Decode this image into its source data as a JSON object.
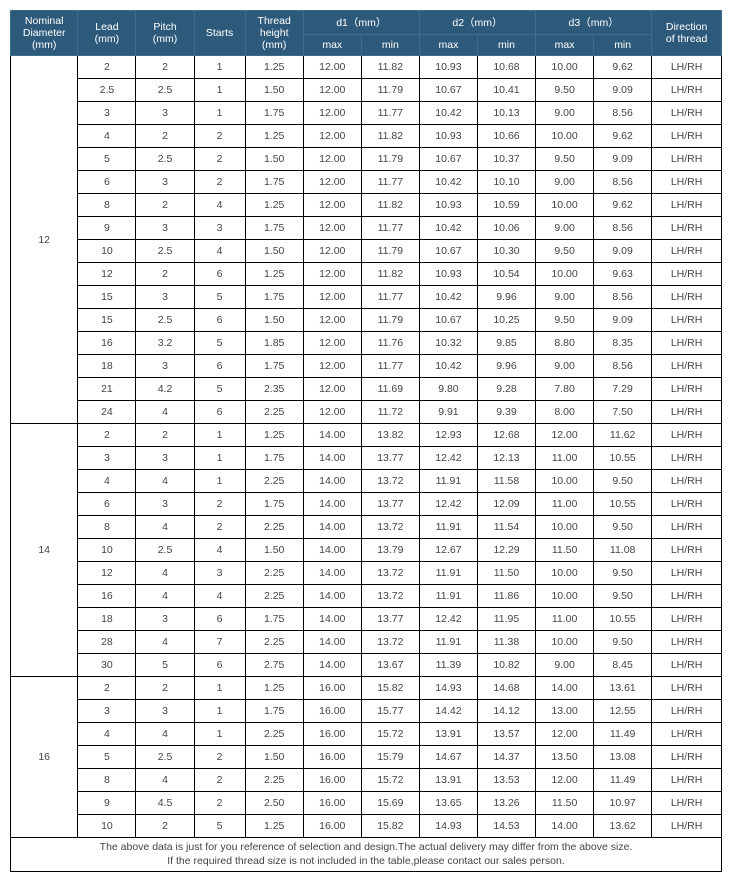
{
  "header": {
    "nominal": "Nominal\nDiameter\n(mm)",
    "lead": "Lead\n(mm)",
    "pitch": "Pitch\n(mm)",
    "starts": "Starts",
    "thread_height": "Thread\nheight\n(mm)",
    "d1": "d1（mm）",
    "d2": "d2（mm）",
    "d3": "d3（mm）",
    "max": "max",
    "min": "min",
    "direction": "Direction\nof thread"
  },
  "footer": {
    "line1": "The above data is just for you reference of selection and design.The actual delivery may differ from the above size.",
    "line2": "If the required thread size is not included in the table,please contact our sales person."
  },
  "groups": [
    {
      "nominal": "12",
      "rows": [
        {
          "lead": "2",
          "pitch": "2",
          "starts": "1",
          "th": "1.25",
          "d1max": "12.00",
          "d1min": "11.82",
          "d2max": "10.93",
          "d2min": "10.68",
          "d3max": "10.00",
          "d3min": "9.62",
          "dir": "LH/RH"
        },
        {
          "lead": "2.5",
          "pitch": "2.5",
          "starts": "1",
          "th": "1.50",
          "d1max": "12.00",
          "d1min": "11.79",
          "d2max": "10.67",
          "d2min": "10.41",
          "d3max": "9.50",
          "d3min": "9.09",
          "dir": "LH/RH"
        },
        {
          "lead": "3",
          "pitch": "3",
          "starts": "1",
          "th": "1.75",
          "d1max": "12.00",
          "d1min": "11.77",
          "d2max": "10.42",
          "d2min": "10.13",
          "d3max": "9.00",
          "d3min": "8.56",
          "dir": "LH/RH"
        },
        {
          "lead": "4",
          "pitch": "2",
          "starts": "2",
          "th": "1.25",
          "d1max": "12.00",
          "d1min": "11.82",
          "d2max": "10.93",
          "d2min": "10.66",
          "d3max": "10.00",
          "d3min": "9.62",
          "dir": "LH/RH"
        },
        {
          "lead": "5",
          "pitch": "2.5",
          "starts": "2",
          "th": "1.50",
          "d1max": "12.00",
          "d1min": "11.79",
          "d2max": "10.67",
          "d2min": "10.37",
          "d3max": "9.50",
          "d3min": "9.09",
          "dir": "LH/RH"
        },
        {
          "lead": "6",
          "pitch": "3",
          "starts": "2",
          "th": "1.75",
          "d1max": "12.00",
          "d1min": "11.77",
          "d2max": "10.42",
          "d2min": "10.10",
          "d3max": "9.00",
          "d3min": "8.56",
          "dir": "LH/RH"
        },
        {
          "lead": "8",
          "pitch": "2",
          "starts": "4",
          "th": "1.25",
          "d1max": "12.00",
          "d1min": "11.82",
          "d2max": "10.93",
          "d2min": "10.59",
          "d3max": "10.00",
          "d3min": "9.62",
          "dir": "LH/RH"
        },
        {
          "lead": "9",
          "pitch": "3",
          "starts": "3",
          "th": "1.75",
          "d1max": "12.00",
          "d1min": "11.77",
          "d2max": "10.42",
          "d2min": "10.06",
          "d3max": "9.00",
          "d3min": "8.56",
          "dir": "LH/RH"
        },
        {
          "lead": "10",
          "pitch": "2.5",
          "starts": "4",
          "th": "1.50",
          "d1max": "12.00",
          "d1min": "11.79",
          "d2max": "10.67",
          "d2min": "10.30",
          "d3max": "9.50",
          "d3min": "9.09",
          "dir": "LH/RH"
        },
        {
          "lead": "12",
          "pitch": "2",
          "starts": "6",
          "th": "1.25",
          "d1max": "12.00",
          "d1min": "11.82",
          "d2max": "10.93",
          "d2min": "10.54",
          "d3max": "10.00",
          "d3min": "9.63",
          "dir": "LH/RH"
        },
        {
          "lead": "15",
          "pitch": "3",
          "starts": "5",
          "th": "1.75",
          "d1max": "12.00",
          "d1min": "11.77",
          "d2max": "10.42",
          "d2min": "9.96",
          "d3max": "9.00",
          "d3min": "8.56",
          "dir": "LH/RH"
        },
        {
          "lead": "15",
          "pitch": "2.5",
          "starts": "6",
          "th": "1.50",
          "d1max": "12.00",
          "d1min": "11.79",
          "d2max": "10.67",
          "d2min": "10.25",
          "d3max": "9.50",
          "d3min": "9.09",
          "dir": "LH/RH"
        },
        {
          "lead": "16",
          "pitch": "3.2",
          "starts": "5",
          "th": "1.85",
          "d1max": "12.00",
          "d1min": "11.76",
          "d2max": "10.32",
          "d2min": "9.85",
          "d3max": "8.80",
          "d3min": "8.35",
          "dir": "LH/RH"
        },
        {
          "lead": "18",
          "pitch": "3",
          "starts": "6",
          "th": "1.75",
          "d1max": "12.00",
          "d1min": "11.77",
          "d2max": "10.42",
          "d2min": "9.96",
          "d3max": "9.00",
          "d3min": "8.56",
          "dir": "LH/RH"
        },
        {
          "lead": "21",
          "pitch": "4.2",
          "starts": "5",
          "th": "2.35",
          "d1max": "12.00",
          "d1min": "11.69",
          "d2max": "9.80",
          "d2min": "9.28",
          "d3max": "7.80",
          "d3min": "7.29",
          "dir": "LH/RH"
        },
        {
          "lead": "24",
          "pitch": "4",
          "starts": "6",
          "th": "2.25",
          "d1max": "12.00",
          "d1min": "11.72",
          "d2max": "9.91",
          "d2min": "9.39",
          "d3max": "8.00",
          "d3min": "7.50",
          "dir": "LH/RH"
        }
      ]
    },
    {
      "nominal": "14",
      "rows": [
        {
          "lead": "2",
          "pitch": "2",
          "starts": "1",
          "th": "1.25",
          "d1max": "14.00",
          "d1min": "13.82",
          "d2max": "12.93",
          "d2min": "12.68",
          "d3max": "12.00",
          "d3min": "11.62",
          "dir": "LH/RH"
        },
        {
          "lead": "3",
          "pitch": "3",
          "starts": "1",
          "th": "1.75",
          "d1max": "14.00",
          "d1min": "13.77",
          "d2max": "12.42",
          "d2min": "12.13",
          "d3max": "11.00",
          "d3min": "10.55",
          "dir": "LH/RH"
        },
        {
          "lead": "4",
          "pitch": "4",
          "starts": "1",
          "th": "2.25",
          "d1max": "14.00",
          "d1min": "13.72",
          "d2max": "11.91",
          "d2min": "11.58",
          "d3max": "10.00",
          "d3min": "9.50",
          "dir": "LH/RH"
        },
        {
          "lead": "6",
          "pitch": "3",
          "starts": "2",
          "th": "1.75",
          "d1max": "14.00",
          "d1min": "13.77",
          "d2max": "12.42",
          "d2min": "12.09",
          "d3max": "11.00",
          "d3min": "10.55",
          "dir": "LH/RH"
        },
        {
          "lead": "8",
          "pitch": "4",
          "starts": "2",
          "th": "2.25",
          "d1max": "14.00",
          "d1min": "13.72",
          "d2max": "11.91",
          "d2min": "11.54",
          "d3max": "10.00",
          "d3min": "9.50",
          "dir": "LH/RH"
        },
        {
          "lead": "10",
          "pitch": "2.5",
          "starts": "4",
          "th": "1.50",
          "d1max": "14.00",
          "d1min": "13.79",
          "d2max": "12.67",
          "d2min": "12.29",
          "d3max": "11.50",
          "d3min": "11.08",
          "dir": "LH/RH"
        },
        {
          "lead": "12",
          "pitch": "4",
          "starts": "3",
          "th": "2.25",
          "d1max": "14.00",
          "d1min": "13.72",
          "d2max": "11.91",
          "d2min": "11.50",
          "d3max": "10.00",
          "d3min": "9.50",
          "dir": "LH/RH"
        },
        {
          "lead": "16",
          "pitch": "4",
          "starts": "4",
          "th": "2.25",
          "d1max": "14.00",
          "d1min": "13.72",
          "d2max": "11.91",
          "d2min": "11.86",
          "d3max": "10.00",
          "d3min": "9.50",
          "dir": "LH/RH"
        },
        {
          "lead": "18",
          "pitch": "3",
          "starts": "6",
          "th": "1.75",
          "d1max": "14.00",
          "d1min": "13.77",
          "d2max": "12.42",
          "d2min": "11.95",
          "d3max": "11.00",
          "d3min": "10.55",
          "dir": "LH/RH"
        },
        {
          "lead": "28",
          "pitch": "4",
          "starts": "7",
          "th": "2.25",
          "d1max": "14.00",
          "d1min": "13.72",
          "d2max": "11.91",
          "d2min": "11.38",
          "d3max": "10.00",
          "d3min": "9.50",
          "dir": "LH/RH"
        },
        {
          "lead": "30",
          "pitch": "5",
          "starts": "6",
          "th": "2.75",
          "d1max": "14.00",
          "d1min": "13.67",
          "d2max": "11.39",
          "d2min": "10.82",
          "d3max": "9.00",
          "d3min": "8.45",
          "dir": "LH/RH"
        }
      ]
    },
    {
      "nominal": "16",
      "rows": [
        {
          "lead": "2",
          "pitch": "2",
          "starts": "1",
          "th": "1.25",
          "d1max": "16.00",
          "d1min": "15.82",
          "d2max": "14.93",
          "d2min": "14.68",
          "d3max": "14.00",
          "d3min": "13.61",
          "dir": "LH/RH"
        },
        {
          "lead": "3",
          "pitch": "3",
          "starts": "1",
          "th": "1.75",
          "d1max": "16.00",
          "d1min": "15.77",
          "d2max": "14.42",
          "d2min": "14.12",
          "d3max": "13.00",
          "d3min": "12.55",
          "dir": "LH/RH"
        },
        {
          "lead": "4",
          "pitch": "4",
          "starts": "1",
          "th": "2.25",
          "d1max": "16.00",
          "d1min": "15.72",
          "d2max": "13.91",
          "d2min": "13.57",
          "d3max": "12.00",
          "d3min": "11.49",
          "dir": "LH/RH"
        },
        {
          "lead": "5",
          "pitch": "2.5",
          "starts": "2",
          "th": "1.50",
          "d1max": "16.00",
          "d1min": "15.79",
          "d2max": "14.67",
          "d2min": "14.37",
          "d3max": "13.50",
          "d3min": "13.08",
          "dir": "LH/RH"
        },
        {
          "lead": "8",
          "pitch": "4",
          "starts": "2",
          "th": "2.25",
          "d1max": "16.00",
          "d1min": "15.72",
          "d2max": "13.91",
          "d2min": "13.53",
          "d3max": "12.00",
          "d3min": "11.49",
          "dir": "LH/RH"
        },
        {
          "lead": "9",
          "pitch": "4.5",
          "starts": "2",
          "th": "2.50",
          "d1max": "16.00",
          "d1min": "15.69",
          "d2max": "13.65",
          "d2min": "13.26",
          "d3max": "11.50",
          "d3min": "10.97",
          "dir": "LH/RH"
        },
        {
          "lead": "10",
          "pitch": "2",
          "starts": "5",
          "th": "1.25",
          "d1max": "16.00",
          "d1min": "15.82",
          "d2max": "14.93",
          "d2min": "14.53",
          "d3max": "14.00",
          "d3min": "13.62",
          "dir": "LH/RH"
        }
      ]
    }
  ]
}
